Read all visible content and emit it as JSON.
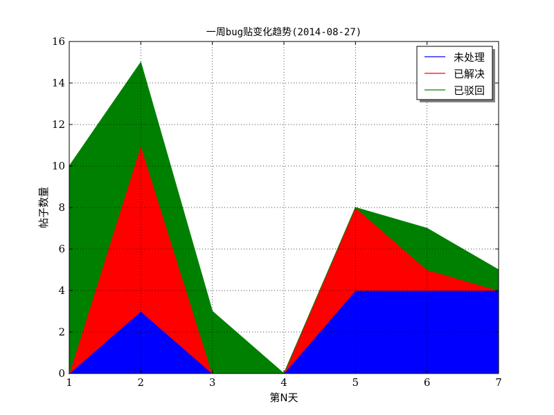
{
  "chart_data": {
    "type": "area",
    "title": "一周bug贴变化趋势(2014-08-27)",
    "xlabel": "第N天",
    "ylabel": "帖子数量",
    "x": [
      1,
      2,
      3,
      4,
      5,
      6,
      7
    ],
    "xlim": [
      1,
      7
    ],
    "ylim": [
      0,
      16
    ],
    "xticks": [
      1,
      2,
      3,
      4,
      5,
      6,
      7
    ],
    "yticks": [
      0,
      2,
      4,
      6,
      8,
      10,
      12,
      14,
      16
    ],
    "stacked": true,
    "grid": true,
    "legend_position": "top-right",
    "series": [
      {
        "name": "未处理",
        "color": "#0000ff",
        "values": [
          0,
          3,
          0,
          0,
          4,
          4,
          4
        ]
      },
      {
        "name": "已解决",
        "color": "#ff0000",
        "values": [
          0,
          8,
          0,
          0,
          4,
          1,
          0
        ]
      },
      {
        "name": "已驳回",
        "color": "#008000",
        "values": [
          10,
          4,
          3,
          0,
          0,
          2,
          1
        ]
      }
    ]
  }
}
